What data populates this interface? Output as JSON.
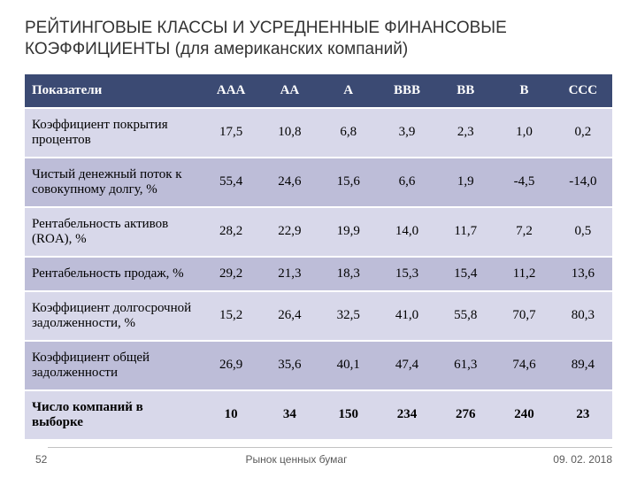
{
  "title": "РЕЙТИНГОВЫЕ КЛАССЫ И УСРЕДНЕННЫЕ ФИНАНСОВЫЕ КОЭФФИЦИЕНТЫ\n(для американских компаний)",
  "table": {
    "type": "table",
    "header_bg": "#3b4a73",
    "header_fg": "#ffffff",
    "row_band_light": "#d8d8ea",
    "row_band_dark": "#bdbdd8",
    "first_col_header": "Показатели",
    "columns": [
      "AAA",
      "AA",
      "A",
      "BBB",
      "BB",
      "B",
      "CCC"
    ],
    "rows": [
      {
        "label": "Коэффициент покрытия процентов",
        "values": [
          "17,5",
          "10,8",
          "6,8",
          "3,9",
          "2,3",
          "1,0",
          "0,2"
        ]
      },
      {
        "label": "Чистый денежный поток к совокупному долгу, %",
        "values": [
          "55,4",
          "24,6",
          "15,6",
          "6,6",
          "1,9",
          "-4,5",
          "-14,0"
        ]
      },
      {
        "label": "Рентабельность активов (ROA), %",
        "values": [
          "28,2",
          "22,9",
          "19,9",
          "14,0",
          "11,7",
          "7,2",
          "0,5"
        ]
      },
      {
        "label": "Рентабельность продаж, %",
        "values": [
          "29,2",
          "21,3",
          "18,3",
          "15,3",
          "15,4",
          "11,2",
          "13,6"
        ]
      },
      {
        "label": "Коэффициент долгосрочной задолженности, %",
        "values": [
          "15,2",
          "26,4",
          "32,5",
          "41,0",
          "55,8",
          "70,7",
          "80,3"
        ]
      },
      {
        "label": "Коэффициент общей задолженности",
        "values": [
          "26,9",
          "35,6",
          "40,1",
          "47,4",
          "61,3",
          "74,6",
          "89,4"
        ]
      },
      {
        "label": "Число компаний в выборке",
        "values": [
          "10",
          "34",
          "150",
          "234",
          "276",
          "240",
          "23"
        ],
        "bold": true
      }
    ]
  },
  "footer": {
    "page": "52",
    "center": "Рынок ценных бумаг",
    "date": "09. 02. 2018"
  }
}
